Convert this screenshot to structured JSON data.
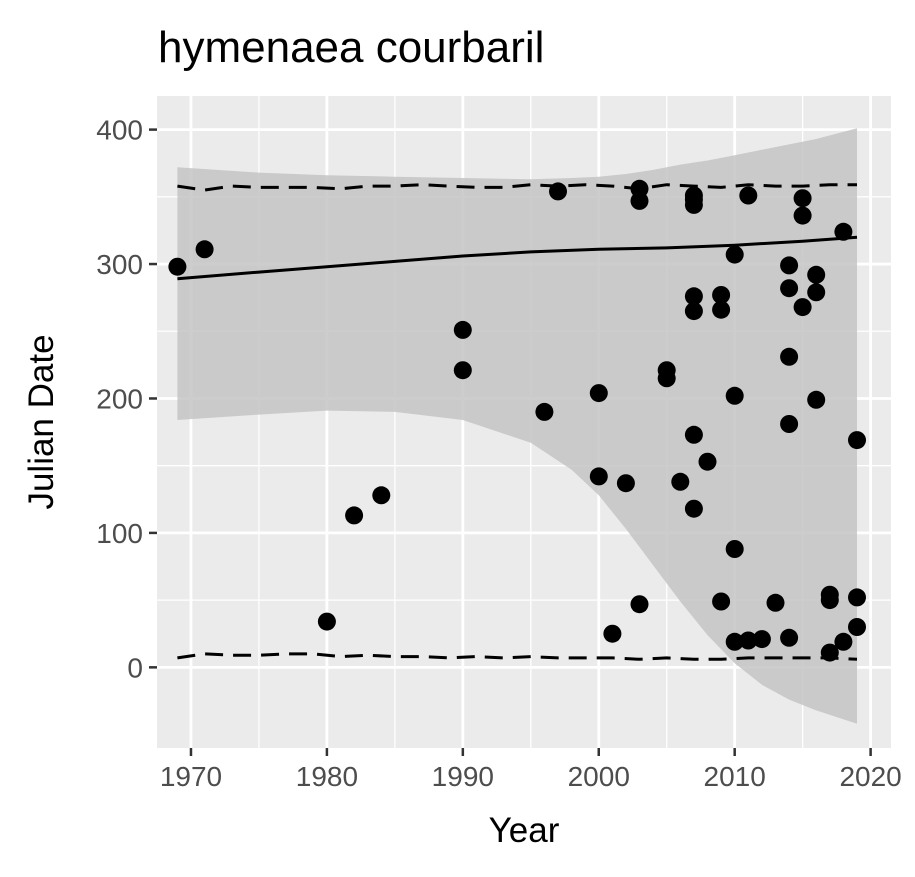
{
  "chart_data": {
    "type": "scatter",
    "title": "hymenaea courbaril",
    "xlabel": "Year",
    "ylabel": "Julian Date",
    "xlim": [
      1967.5,
      2021.5
    ],
    "ylim": [
      -60,
      425
    ],
    "x_ticks": [
      1970,
      1980,
      1990,
      2000,
      2010,
      2020
    ],
    "x_tick_labels": [
      "1970",
      "1980",
      "1990",
      "2000",
      "2010",
      "2020"
    ],
    "y_ticks": [
      0,
      100,
      200,
      300,
      400
    ],
    "y_tick_labels": [
      "0",
      "100",
      "200",
      "300",
      "400"
    ],
    "grid": true,
    "colors": {
      "panel": "#ebebeb",
      "grid": "#ffffff",
      "points": "#000000",
      "ribbon": "#c4c4c4"
    },
    "points": [
      {
        "x": 1969,
        "y": 298
      },
      {
        "x": 1971,
        "y": 311
      },
      {
        "x": 1980,
        "y": 34
      },
      {
        "x": 1982,
        "y": 113
      },
      {
        "x": 1984,
        "y": 128
      },
      {
        "x": 1990,
        "y": 251
      },
      {
        "x": 1990,
        "y": 221
      },
      {
        "x": 1996,
        "y": 190
      },
      {
        "x": 1997,
        "y": 354
      },
      {
        "x": 2000,
        "y": 204
      },
      {
        "x": 2000,
        "y": 142
      },
      {
        "x": 2001,
        "y": 25
      },
      {
        "x": 2002,
        "y": 137
      },
      {
        "x": 2003,
        "y": 356
      },
      {
        "x": 2003,
        "y": 347
      },
      {
        "x": 2003,
        "y": 47
      },
      {
        "x": 2005,
        "y": 221
      },
      {
        "x": 2005,
        "y": 215
      },
      {
        "x": 2006,
        "y": 138
      },
      {
        "x": 2007,
        "y": 351
      },
      {
        "x": 2007,
        "y": 348
      },
      {
        "x": 2007,
        "y": 344
      },
      {
        "x": 2007,
        "y": 276
      },
      {
        "x": 2007,
        "y": 265
      },
      {
        "x": 2007,
        "y": 173
      },
      {
        "x": 2007,
        "y": 118
      },
      {
        "x": 2008,
        "y": 153
      },
      {
        "x": 2009,
        "y": 277
      },
      {
        "x": 2009,
        "y": 266
      },
      {
        "x": 2009,
        "y": 49
      },
      {
        "x": 2010,
        "y": 307
      },
      {
        "x": 2010,
        "y": 202
      },
      {
        "x": 2010,
        "y": 88
      },
      {
        "x": 2010,
        "y": 19
      },
      {
        "x": 2011,
        "y": 351
      },
      {
        "x": 2011,
        "y": 20
      },
      {
        "x": 2012,
        "y": 21
      },
      {
        "x": 2013,
        "y": 48
      },
      {
        "x": 2014,
        "y": 299
      },
      {
        "x": 2014,
        "y": 282
      },
      {
        "x": 2014,
        "y": 231
      },
      {
        "x": 2014,
        "y": 181
      },
      {
        "x": 2014,
        "y": 22
      },
      {
        "x": 2015,
        "y": 349
      },
      {
        "x": 2015,
        "y": 336
      },
      {
        "x": 2015,
        "y": 268
      },
      {
        "x": 2016,
        "y": 292
      },
      {
        "x": 2016,
        "y": 279
      },
      {
        "x": 2016,
        "y": 199
      },
      {
        "x": 2017,
        "y": 54
      },
      {
        "x": 2017,
        "y": 50
      },
      {
        "x": 2017,
        "y": 11
      },
      {
        "x": 2018,
        "y": 324
      },
      {
        "x": 2018,
        "y": 19
      },
      {
        "x": 2019,
        "y": 169
      },
      {
        "x": 2019,
        "y": 52
      },
      {
        "x": 2019,
        "y": 30
      }
    ],
    "trend_line": {
      "x": [
        1969,
        1975,
        1980,
        1985,
        1990,
        1995,
        2000,
        2005,
        2010,
        2015,
        2019
      ],
      "y": [
        289,
        294,
        298,
        302,
        306,
        309,
        311,
        312,
        314,
        317,
        320
      ]
    },
    "ribbon": {
      "x": [
        1969,
        1975,
        1980,
        1985,
        1990,
        1995,
        1998,
        2000,
        2002,
        2004,
        2006,
        2008,
        2010,
        2012,
        2014,
        2016,
        2019
      ],
      "upper": [
        372,
        368,
        366,
        365,
        364,
        363,
        364,
        365,
        367,
        370,
        374,
        377,
        381,
        385,
        389,
        393,
        401
      ],
      "lower": [
        184,
        188,
        191,
        190,
        184,
        167,
        147,
        128,
        103,
        76,
        49,
        24,
        3,
        -13,
        -24,
        -32,
        -42
      ]
    },
    "dashed_upper": {
      "x": [
        1969,
        1971,
        1973,
        1975,
        1977,
        1979,
        1981,
        1983,
        1985,
        1987,
        1989,
        1991,
        1993,
        1995,
        1997,
        1999,
        2001,
        2003,
        2005,
        2007,
        2009,
        2011,
        2013,
        2015,
        2017,
        2019
      ],
      "y": [
        358,
        355,
        358,
        357,
        357,
        357,
        356,
        358,
        358,
        359,
        358,
        357,
        357,
        359,
        358,
        359,
        358,
        356,
        359,
        358,
        357,
        359,
        358,
        358,
        359,
        359
      ]
    },
    "dashed_lower": {
      "x": [
        1969,
        1971,
        1973,
        1975,
        1977,
        1979,
        1981,
        1983,
        1985,
        1987,
        1989,
        1991,
        1993,
        1995,
        1997,
        1999,
        2001,
        2003,
        2005,
        2007,
        2009,
        2011,
        2013,
        2015,
        2017,
        2019
      ],
      "y": [
        7,
        10,
        9,
        9,
        10,
        10,
        8,
        9,
        8,
        8,
        7,
        8,
        7,
        8,
        7,
        7,
        7,
        6,
        7,
        6,
        6,
        7,
        7,
        7,
        7,
        6
      ]
    }
  }
}
